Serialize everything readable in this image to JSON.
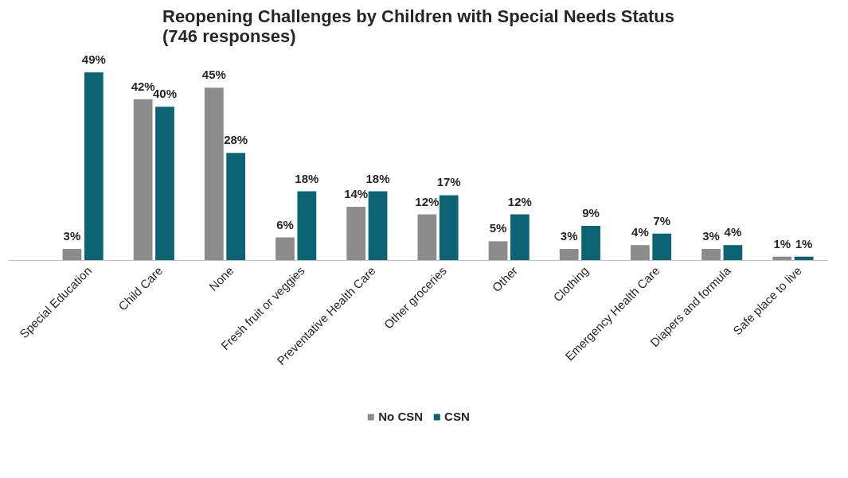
{
  "chart_data": {
    "type": "bar",
    "title": "Reopening Challenges by Children with Special Needs Status\n(746 responses)",
    "categories": [
      "Special Education",
      "Child Care",
      "None",
      "Fresh fruit or veggies",
      "Preventative Health Care",
      "Other groceries",
      "Other",
      "Clothing",
      "Emergency Health Care",
      "Diapers and formula",
      "Safe place to live"
    ],
    "series": [
      {
        "name": "No CSN",
        "color": "#8c8c8c",
        "values": [
          3,
          42,
          45,
          6,
          14,
          12,
          5,
          3,
          4,
          3,
          1
        ],
        "value_labels": [
          "3%",
          "42%",
          "45%",
          "6%",
          "14%",
          "12%",
          "5%",
          "3%",
          "4%",
          "3%",
          "1%"
        ]
      },
      {
        "name": "CSN",
        "color": "#0b6373",
        "values": [
          49,
          40,
          28,
          18,
          18,
          17,
          12,
          9,
          7,
          4,
          1
        ],
        "value_labels": [
          "49%",
          "40%",
          "28%",
          "18%",
          "18%",
          "17%",
          "12%",
          "9%",
          "7%",
          "4%",
          "1%"
        ]
      }
    ],
    "tick_labels": "x",
    "grid": false,
    "legend": "bottom"
  }
}
